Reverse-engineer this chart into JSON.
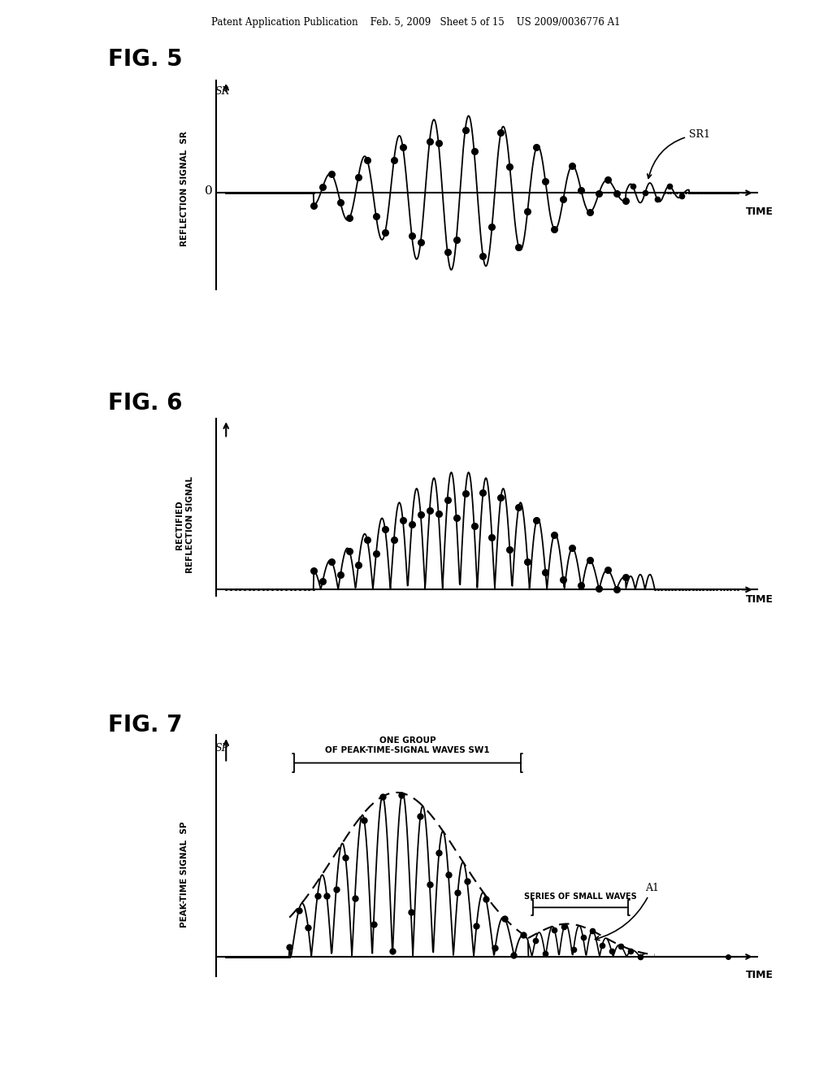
{
  "background_color": "#ffffff",
  "header_text": "Patent Application Publication    Feb. 5, 2009   Sheet 5 of 15    US 2009/0036776 A1",
  "fig5_title": "FIG. 5",
  "fig6_title": "FIG. 6",
  "fig7_title": "FIG. 7"
}
